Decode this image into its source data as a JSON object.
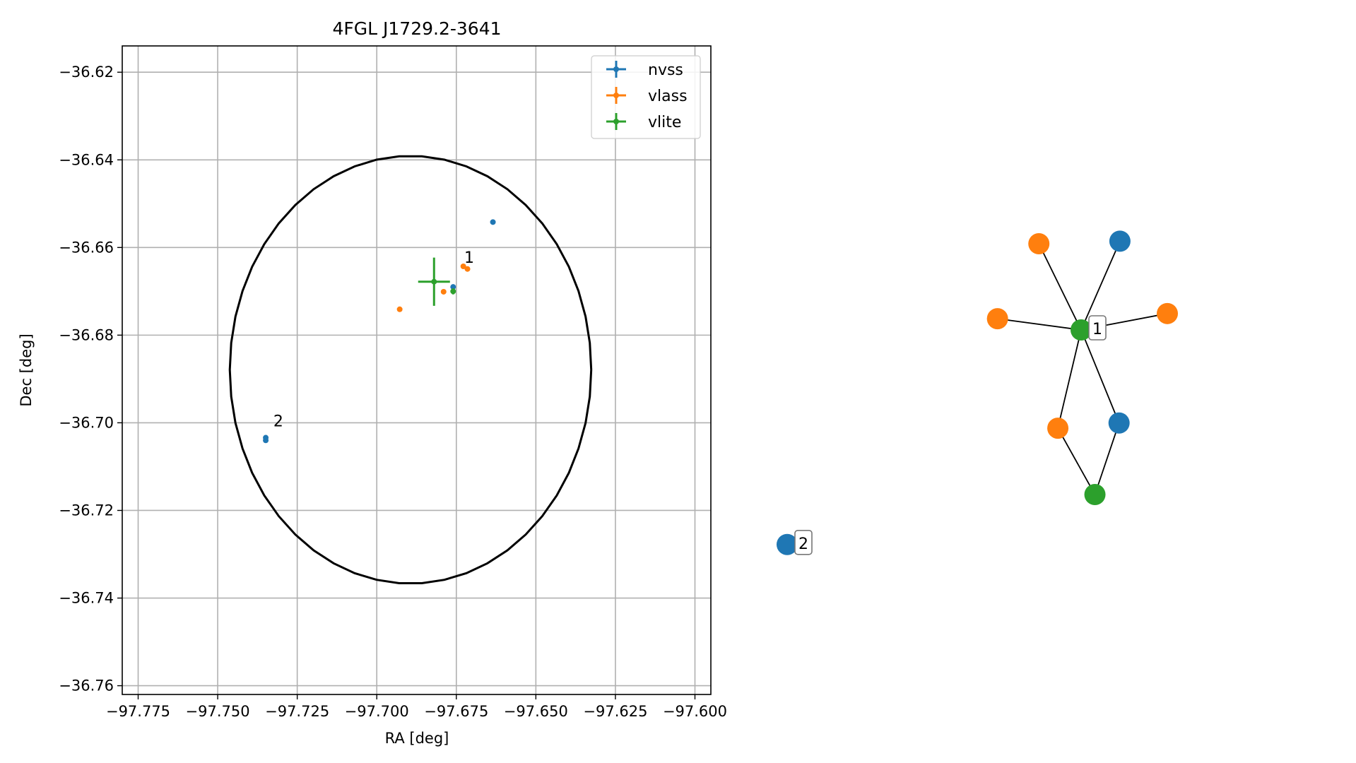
{
  "chart_data": [
    {
      "type": "scatter",
      "title": "4FGL J1729.2-3641",
      "xlabel": "RA [deg]",
      "ylabel": "Dec [deg]",
      "xlim": [
        -97.78,
        -97.595
      ],
      "ylim": [
        -36.762,
        -36.614
      ],
      "grid": true,
      "legend_position": "top-right",
      "xticks": [
        -97.775,
        -97.75,
        -97.725,
        -97.7,
        -97.675,
        -97.65,
        -97.625,
        -97.6
      ],
      "xtick_labels": [
        "−97.775",
        "−97.750",
        "−97.725",
        "−97.700",
        "−97.675",
        "−97.650",
        "−97.625",
        "−97.600"
      ],
      "yticks": [
        -36.62,
        -36.64,
        -36.66,
        -36.68,
        -36.7,
        -36.72,
        -36.74,
        -36.76
      ],
      "ytick_labels": [
        "−36.62",
        "−36.64",
        "−36.66",
        "−36.68",
        "−36.70",
        "−36.72",
        "−36.74",
        "−36.76"
      ],
      "ellipse": {
        "center": [
          -97.6894,
          -36.6879
        ],
        "ra_semi_axis": 0.0568,
        "dec_semi_axis": 0.0488,
        "color": "#000000"
      },
      "series": [
        {
          "name": "nvss",
          "color": "#1f77b4",
          "points": [
            {
              "x": -97.6635,
              "y": -36.6542,
              "xerr": 0.0003,
              "yerr": 0.0003
            },
            {
              "x": -97.676,
              "y": -36.669,
              "xerr": 0.0004,
              "yerr": 0.0004
            },
            {
              "x": -97.7349,
              "y": -36.7034,
              "xerr": 0.0004,
              "yerr": 0.0004
            },
            {
              "x": -97.7349,
              "y": -36.704,
              "xerr": 0.0003,
              "yerr": 0.0003
            }
          ]
        },
        {
          "name": "vlass",
          "color": "#ff7f0e",
          "points": [
            {
              "x": -97.6728,
              "y": -36.6643,
              "xerr": 0.0002,
              "yerr": 0.0002
            },
            {
              "x": -97.6715,
              "y": -36.6649,
              "xerr": 0.0002,
              "yerr": 0.0002
            },
            {
              "x": -97.679,
              "y": -36.6701,
              "xerr": 0.0002,
              "yerr": 0.0002
            },
            {
              "x": -97.6928,
              "y": -36.6741,
              "xerr": 0.0002,
              "yerr": 0.0002
            }
          ]
        },
        {
          "name": "vlite",
          "color": "#2ca02c",
          "points": [
            {
              "x": -97.682,
              "y": -36.6678,
              "xerr": 0.005,
              "yerr": 0.0055
            },
            {
              "x": -97.676,
              "y": -36.67,
              "xerr": 0.0005,
              "yerr": 0.0007
            }
          ]
        }
      ],
      "annotations": [
        {
          "text": "1",
          "x": -97.6725,
          "y": -36.6635
        },
        {
          "text": "2",
          "x": -97.7325,
          "y": -36.7008
        }
      ]
    },
    {
      "type": "network",
      "axes": "off",
      "nodes": [
        {
          "id": "n1",
          "survey": "vlite",
          "color": "#2ca02c",
          "x": 0.0,
          "y": 0.0
        },
        {
          "id": "n2",
          "survey": "vlass",
          "color": "#ff7f0e",
          "x": -0.49,
          "y": 1.0
        },
        {
          "id": "n3",
          "survey": "nvss",
          "color": "#1f77b4",
          "x": 0.45,
          "y": 1.03
        },
        {
          "id": "n4",
          "survey": "vlass",
          "color": "#ff7f0e",
          "x": -0.97,
          "y": 0.13
        },
        {
          "id": "n5",
          "survey": "vlass",
          "color": "#ff7f0e",
          "x": 1.0,
          "y": 0.19
        },
        {
          "id": "n6",
          "survey": "vlass",
          "color": "#ff7f0e",
          "x": -0.27,
          "y": -1.14
        },
        {
          "id": "n7",
          "survey": "nvss",
          "color": "#1f77b4",
          "x": 0.44,
          "y": -1.08
        },
        {
          "id": "n8",
          "survey": "vlite",
          "color": "#2ca02c",
          "x": 0.16,
          "y": -1.91
        },
        {
          "id": "n9",
          "survey": "nvss",
          "color": "#1f77b4",
          "x": -3.41,
          "y": -2.49
        }
      ],
      "edges": [
        [
          "n1",
          "n2"
        ],
        [
          "n1",
          "n3"
        ],
        [
          "n1",
          "n4"
        ],
        [
          "n1",
          "n5"
        ],
        [
          "n1",
          "n6"
        ],
        [
          "n1",
          "n7"
        ],
        [
          "n6",
          "n8"
        ],
        [
          "n7",
          "n8"
        ]
      ],
      "labels": [
        {
          "text": "1",
          "node": "n1"
        },
        {
          "text": "2",
          "node": "n9"
        }
      ]
    }
  ]
}
